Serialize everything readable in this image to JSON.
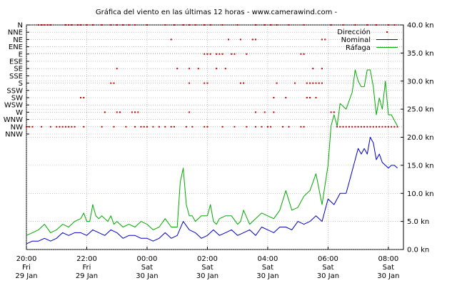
{
  "chart_data": {
    "type": "line",
    "title": "Gráfica del viento en las últimas 12 horas - www.camerawind.com -",
    "direction_axis": {
      "labels": [
        "N",
        "NNE",
        "NE",
        "ENE",
        "E",
        "ESE",
        "SE",
        "SSE",
        "S",
        "SSW",
        "SW",
        "WSW",
        "W",
        "WNW",
        "NW",
        "NNW"
      ]
    },
    "speed_axis": {
      "ticks": [
        0,
        5,
        10,
        15,
        20,
        25,
        30,
        35,
        40
      ],
      "tick_labels": [
        "0.0 kn",
        "5.0 kn",
        "10.0 kn",
        "15.0 kn",
        "20.0 kn",
        "25.0 kn",
        "30.0 kn",
        "35.0 kn",
        "40.0 kn"
      ],
      "ylim": [
        0,
        40
      ]
    },
    "time_axis": {
      "xlim_hours": [
        20.0,
        32.5
      ],
      "ticks": [
        {
          "hour": 20,
          "time": "20:00",
          "day": "Fri",
          "date": "29 Jan"
        },
        {
          "hour": 22,
          "time": "22:00",
          "day": "Fri",
          "date": "29 Jan"
        },
        {
          "hour": 24,
          "time": "00:00",
          "day": "Sat",
          "date": "30 Jan"
        },
        {
          "hour": 26,
          "time": "02:00",
          "day": "Sat",
          "date": "30 Jan"
        },
        {
          "hour": 28,
          "time": "04:00",
          "day": "Sat",
          "date": "30 Jan"
        },
        {
          "hour": 30,
          "time": "06:00",
          "day": "Sat",
          "date": "30 Jan"
        },
        {
          "hour": 32,
          "time": "08:00",
          "day": "Sat",
          "date": "30 Jan"
        }
      ]
    },
    "grid": true,
    "legend": {
      "placement": "top-right",
      "items": [
        {
          "label": "Dirección",
          "color": "#cc0000",
          "style": "dot"
        },
        {
          "label": "Nominal",
          "color": "#0000cc",
          "style": "line"
        },
        {
          "label": "Ráfaga",
          "color": "#00aa00",
          "style": "line"
        }
      ]
    },
    "series": [
      {
        "name": "Ráfaga",
        "color": "#00aa00",
        "x": [
          20.0,
          20.2,
          20.4,
          20.6,
          20.8,
          21.0,
          21.2,
          21.4,
          21.6,
          21.8,
          21.9,
          22.0,
          22.1,
          22.2,
          22.3,
          22.4,
          22.5,
          22.6,
          22.7,
          22.8,
          22.9,
          23.0,
          23.2,
          23.4,
          23.6,
          23.8,
          24.0,
          24.2,
          24.4,
          24.6,
          24.8,
          25.0,
          25.1,
          25.2,
          25.3,
          25.4,
          25.5,
          25.6,
          25.8,
          26.0,
          26.1,
          26.2,
          26.3,
          26.4,
          26.6,
          26.8,
          27.0,
          27.1,
          27.2,
          27.4,
          27.6,
          27.8,
          28.0,
          28.2,
          28.4,
          28.6,
          28.8,
          29.0,
          29.2,
          29.4,
          29.6,
          29.8,
          30.0,
          30.1,
          30.2,
          30.3,
          30.4,
          30.6,
          30.8,
          30.9,
          31.0,
          31.1,
          31.2,
          31.3,
          31.4,
          31.5,
          31.6,
          31.7,
          31.8,
          31.9,
          32.0,
          32.1,
          32.2,
          32.3
        ],
        "values": [
          2.5,
          3,
          3.5,
          4.5,
          3,
          3.5,
          4.5,
          4,
          5,
          5.5,
          6.5,
          5,
          5,
          8,
          6,
          5.5,
          6,
          5.5,
          5,
          6,
          4.5,
          5,
          4,
          4.5,
          4,
          5,
          4.5,
          3.5,
          4,
          5.5,
          4,
          4,
          12,
          14.5,
          8,
          6,
          6,
          5,
          6,
          6,
          8,
          5,
          4.5,
          5.5,
          6,
          6,
          4.5,
          5,
          7,
          4.5,
          5.5,
          6.5,
          6,
          5.5,
          7,
          10.5,
          7,
          7.5,
          9.5,
          10.5,
          13.5,
          8,
          15,
          22,
          24,
          22,
          26,
          25,
          28,
          32,
          30,
          29,
          29,
          32,
          32,
          29,
          24,
          27,
          25,
          30,
          24,
          24,
          23,
          22
        ]
      },
      {
        "name": "Nominal",
        "color": "#0000cc",
        "x": [
          20.0,
          20.2,
          20.4,
          20.6,
          20.8,
          21.0,
          21.2,
          21.4,
          21.6,
          21.8,
          22.0,
          22.2,
          22.4,
          22.6,
          22.8,
          23.0,
          23.2,
          23.4,
          23.6,
          23.8,
          24.0,
          24.2,
          24.4,
          24.6,
          24.8,
          25.0,
          25.2,
          25.4,
          25.6,
          25.8,
          26.0,
          26.2,
          26.4,
          26.6,
          26.8,
          27.0,
          27.2,
          27.4,
          27.6,
          27.8,
          28.0,
          28.2,
          28.4,
          28.6,
          28.8,
          29.0,
          29.2,
          29.4,
          29.6,
          29.8,
          30.0,
          30.2,
          30.4,
          30.6,
          30.8,
          31.0,
          31.1,
          31.2,
          31.3,
          31.4,
          31.5,
          31.6,
          31.7,
          31.8,
          31.9,
          32.0,
          32.1,
          32.2,
          32.3
        ],
        "values": [
          1,
          1.5,
          1.5,
          2,
          1.5,
          2,
          3,
          2.5,
          3,
          3,
          2.5,
          3.5,
          3,
          2.5,
          3.5,
          3,
          2,
          2.5,
          2.5,
          2,
          2,
          1.5,
          2,
          3,
          2,
          2.5,
          5,
          3.5,
          3,
          2,
          2.5,
          3.5,
          2.5,
          3,
          3.5,
          2.5,
          3,
          3.5,
          2.5,
          4,
          3.5,
          3,
          4,
          4,
          3.5,
          5,
          4.5,
          5,
          6,
          5,
          9,
          8,
          10,
          10,
          14,
          18,
          17,
          18,
          17,
          20,
          19,
          16,
          17,
          15.5,
          15,
          14.5,
          15,
          15,
          14.5
        ]
      }
    ],
    "direction_samples": [
      {
        "label": "N",
        "x": [
          20.4,
          20.5,
          20.6,
          20.7,
          20.8,
          21.3,
          21.4,
          21.5,
          21.7,
          21.8,
          22.0,
          22.2,
          22.5,
          22.8,
          23.0,
          23.2,
          23.4,
          23.6,
          24.0,
          24.6,
          24.9,
          25.2,
          25.4,
          25.6,
          25.9,
          26.1,
          26.5,
          27.0,
          27.6,
          27.9,
          28.1,
          28.3,
          28.7,
          29.2,
          30.1,
          30.5,
          30.9,
          31.3,
          31.6,
          32.0,
          32.2
        ]
      },
      {
        "label": "NE",
        "x": [
          24.8,
          26.7,
          27.1,
          27.5,
          27.6,
          29.8,
          29.9
        ]
      },
      {
        "label": "E",
        "x": [
          25.9,
          26.0,
          26.1,
          26.3,
          26.4,
          26.5,
          26.8,
          26.9,
          27.3,
          29.1,
          29.2
        ]
      },
      {
        "label": "SE",
        "x": [
          23.0,
          25.0,
          25.4,
          25.7,
          26.3,
          26.6,
          29.5,
          29.8
        ]
      },
      {
        "label": "S",
        "x": [
          22.8,
          22.9,
          25.4,
          25.9,
          26.0,
          27.1,
          27.2,
          28.3,
          28.9,
          29.3,
          29.4,
          29.5,
          29.6,
          29.7,
          29.8
        ]
      },
      {
        "label": "SW",
        "x": [
          21.8,
          21.9,
          28.2,
          28.6,
          29.3,
          29.4,
          29.6
        ]
      },
      {
        "label": "W",
        "x": [
          22.6,
          23.0,
          23.1,
          23.5,
          23.6,
          23.7,
          25.4,
          27.6,
          27.9,
          28.2,
          30.1,
          30.2
        ]
      },
      {
        "label": "NW",
        "x": [
          20.0,
          20.1,
          20.2,
          20.5,
          20.8,
          21.0,
          21.1,
          21.2,
          21.3,
          21.4,
          21.5,
          21.6,
          21.9,
          22.5,
          22.9,
          23.3,
          23.6,
          23.8,
          23.9,
          24.0,
          24.2,
          24.4,
          24.6,
          24.8,
          24.9,
          25.3,
          25.5,
          25.9,
          26.0,
          26.5,
          26.9,
          27.3,
          27.6,
          27.8,
          28.0,
          28.1,
          28.5,
          28.7,
          29.1,
          29.2,
          30.3,
          30.4,
          30.5,
          30.6,
          30.7,
          30.8,
          30.9,
          31.0,
          31.1,
          31.2,
          31.3,
          31.4,
          31.5,
          31.6,
          31.7,
          31.8,
          31.9,
          32.0,
          32.1,
          32.2,
          32.3
        ]
      }
    ]
  }
}
